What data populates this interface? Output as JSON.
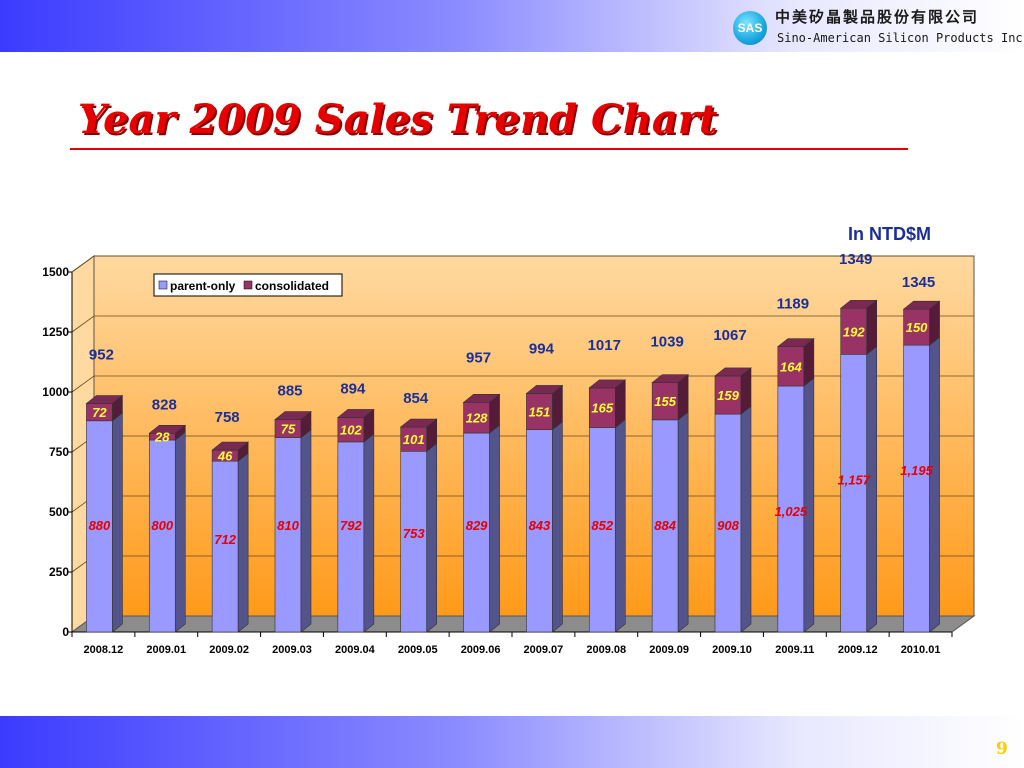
{
  "header": {
    "logo_text": "SAS",
    "company_name_cn": "中美矽晶製品股份有限公司",
    "company_name_en": "Sino-American Silicon Products Inc."
  },
  "title": "Year 2009 Sales Trend Chart",
  "unit_label": "In NTD$M",
  "page_number": "9",
  "colors": {
    "parent_only": "#9999ff",
    "consolidated": "#993366",
    "parent_label": "#e60000",
    "diff_label": "#ffff33",
    "total_label": "#1b2f99",
    "plot_top": "#ffd9a0",
    "plot_bottom": "#ff9a1a"
  },
  "chart_data": {
    "type": "bar",
    "stacked": true,
    "three_d": true,
    "categories": [
      "2008.12",
      "2009.01",
      "2009.02",
      "2009.03",
      "2009.04",
      "2009.05",
      "2009.06",
      "2009.07",
      "2009.08",
      "2009.09",
      "2009.10",
      "2009.11",
      "2009.12",
      "2010.01"
    ],
    "series": [
      {
        "name": "parent-only",
        "values": [
          880,
          800,
          712,
          810,
          792,
          753,
          829,
          843,
          852,
          884,
          908,
          1025,
          1157,
          1195
        ],
        "labels": [
          "880",
          "800",
          "712",
          "810",
          "792",
          "753",
          "829",
          "843",
          "852",
          "884",
          "908",
          "1,025",
          "1,157",
          "1,195"
        ]
      },
      {
        "name": "consolidated",
        "values": [
          72,
          28,
          46,
          75,
          102,
          101,
          128,
          151,
          165,
          155,
          159,
          164,
          192,
          150
        ],
        "labels": [
          "72",
          "28",
          "46",
          "75",
          "102",
          "101",
          "128",
          "151",
          "165",
          "155",
          "159",
          "164",
          "192",
          "150"
        ]
      }
    ],
    "totals": [
      "952",
      "828",
      "758",
      "885",
      "894",
      "854",
      "957",
      "994",
      "1017",
      "1039",
      "1067",
      "1189",
      "1349",
      "1345"
    ],
    "y_ticks": [
      "0",
      "250",
      "500",
      "750",
      "1000",
      "1250",
      "1500"
    ],
    "ylim": [
      0,
      1500
    ],
    "grid": true,
    "legend_position": "top-left"
  }
}
